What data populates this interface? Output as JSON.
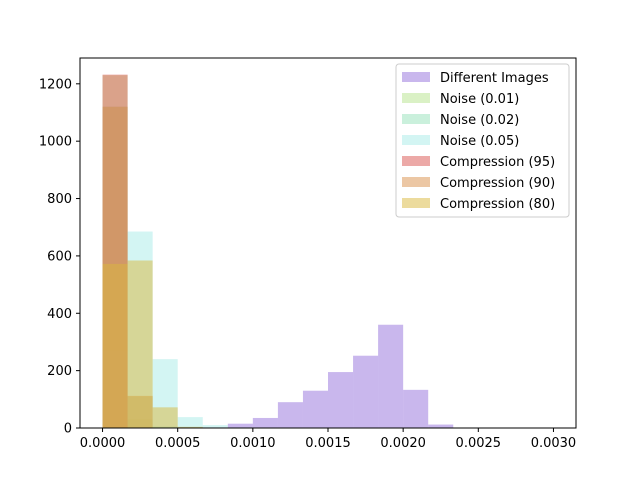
{
  "chart_data": {
    "type": "bar",
    "title": "",
    "xlabel": "",
    "ylabel": "",
    "xlim": [
      -0.00015,
      0.00315
    ],
    "ylim": [
      0,
      1290
    ],
    "x_ticks": [
      0.0,
      0.0005,
      0.001,
      0.0015,
      0.002,
      0.0025,
      0.003
    ],
    "x_tick_labels": [
      "0.0000",
      "0.0005",
      "0.0010",
      "0.0015",
      "0.0020",
      "0.0025",
      "0.0030"
    ],
    "y_ticks": [
      0,
      200,
      400,
      600,
      800,
      1000,
      1200
    ],
    "y_tick_labels": [
      "0",
      "200",
      "400",
      "600",
      "800",
      "1000",
      "1200"
    ],
    "bin_edges": [
      0.0,
      0.0001667,
      0.0003333,
      0.0005,
      0.0006667,
      0.0008333,
      0.001,
      0.0011667,
      0.0013333,
      0.0015,
      0.0016667,
      0.0018333,
      0.002,
      0.0021667,
      0.0023333,
      0.0025,
      0.0026667,
      0.0028333,
      0.003
    ],
    "legend_position": "upper right",
    "series": [
      {
        "name": "Different Images",
        "color": "#9370db",
        "values": [
          0,
          0,
          0,
          0,
          2,
          15,
          35,
          90,
          130,
          195,
          252,
          360,
          133,
          12,
          0,
          0,
          0,
          0
        ]
      },
      {
        "name": "Noise (0.01)",
        "color": "#b5e48c",
        "values": [
          1230,
          30,
          0,
          0,
          0,
          0,
          0,
          0,
          0,
          0,
          0,
          0,
          0,
          0,
          0,
          0,
          0,
          0
        ]
      },
      {
        "name": "Noise (0.02)",
        "color": "#95e1b9",
        "values": [
          1120,
          110,
          5,
          0,
          0,
          0,
          0,
          0,
          0,
          0,
          0,
          0,
          0,
          0,
          0,
          0,
          0,
          0
        ]
      },
      {
        "name": "Noise (0.05)",
        "color": "#a8ebe8",
        "values": [
          270,
          685,
          240,
          38,
          10,
          2,
          0,
          0,
          0,
          0,
          0,
          0,
          0,
          0,
          0,
          0,
          0,
          0
        ]
      },
      {
        "name": "Compression (95)",
        "color": "#d9534f",
        "values": [
          1232,
          0,
          0,
          0,
          0,
          0,
          0,
          0,
          0,
          0,
          0,
          0,
          0,
          0,
          0,
          0,
          0,
          0
        ]
      },
      {
        "name": "Compression (90)",
        "color": "#d9904a",
        "values": [
          1120,
          112,
          0,
          0,
          0,
          0,
          0,
          0,
          0,
          0,
          0,
          0,
          0,
          0,
          0,
          0,
          0,
          0
        ]
      },
      {
        "name": "Compression (80)",
        "color": "#d9b83c",
        "values": [
          572,
          584,
          72,
          4,
          0,
          0,
          0,
          0,
          0,
          0,
          0,
          0,
          0,
          0,
          0,
          0,
          0,
          0
        ]
      }
    ]
  }
}
